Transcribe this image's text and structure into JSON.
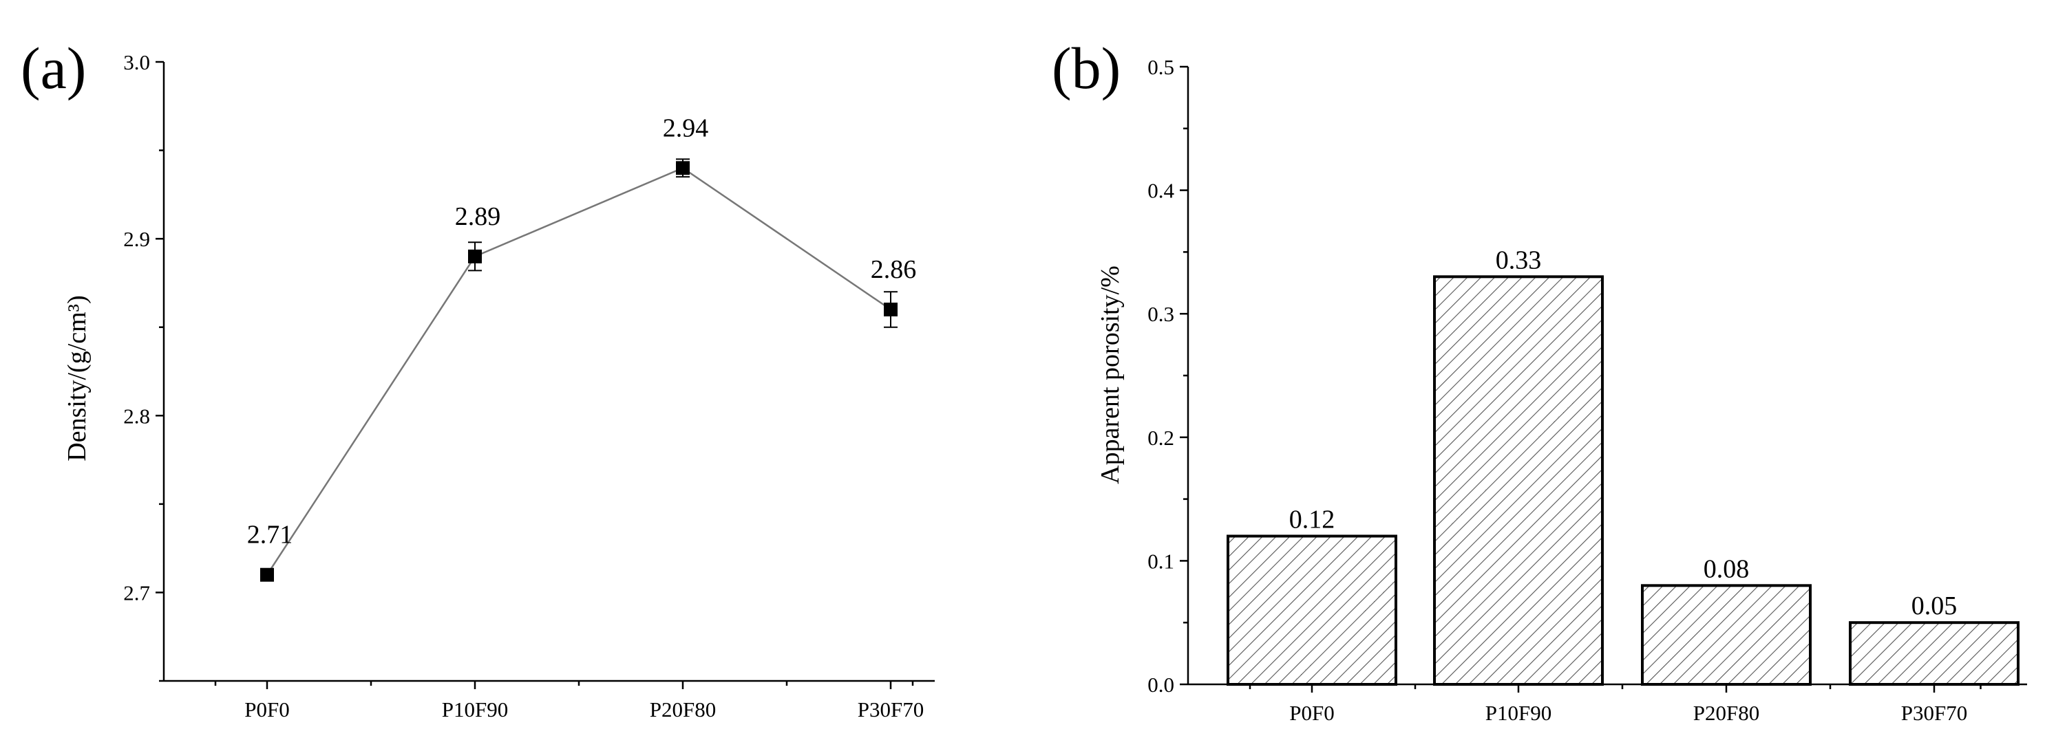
{
  "chart_data": [
    {
      "panel": "(a)",
      "type": "line",
      "categories": [
        "P0F0",
        "P10F90",
        "P20F80",
        "P30F70"
      ],
      "series": [
        {
          "values": [
            2.71,
            2.89,
            2.94,
            2.86
          ],
          "error": [
            0.0,
            0.008,
            0.005,
            0.01
          ]
        }
      ],
      "data_labels": [
        "2.71",
        "2.89",
        "2.94",
        "2.86"
      ],
      "ylabel": "Density/(g/cm³)",
      "ylim": [
        2.65,
        3.0
      ],
      "yticks": [
        2.7,
        2.8,
        2.9,
        3.0
      ],
      "ytick_labels": [
        "2.7",
        "2.8",
        "2.9",
        "3.0"
      ],
      "grid": false,
      "marker": "square",
      "colors": {
        "line": "#777777",
        "marker": "#000000"
      }
    },
    {
      "panel": "(b)",
      "type": "bar",
      "categories": [
        "P0F0",
        "P10F90",
        "P20F80",
        "P30F70"
      ],
      "values": [
        0.12,
        0.33,
        0.08,
        0.05
      ],
      "data_labels": [
        "0.12",
        "0.33",
        "0.08",
        "0.05"
      ],
      "ylabel": "Apparent porosity/%",
      "ylim": [
        0.0,
        0.5
      ],
      "yticks": [
        0.0,
        0.1,
        0.2,
        0.3,
        0.4,
        0.5
      ],
      "ytick_labels": [
        "0.0",
        "0.1",
        "0.2",
        "0.3",
        "0.4",
        "0.5"
      ],
      "grid": false,
      "fill": "diagonal-hatch",
      "colors": {
        "bar_edge": "#000000",
        "hatch": "#555555"
      }
    }
  ]
}
